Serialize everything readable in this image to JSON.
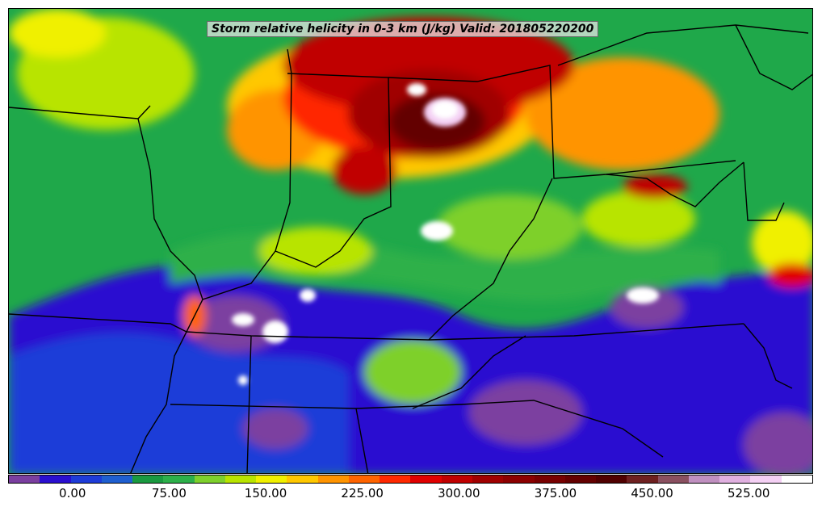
{
  "title": "Storm relative helicity in 0-3 km (J/kg) Valid: 201805220200",
  "colorbar": {
    "colors": [
      "#7b3fa0",
      "#2a0fd0",
      "#1e3cd8",
      "#1f5fd0",
      "#1a9a40",
      "#2db04a",
      "#7ed02c",
      "#b8e400",
      "#f0f000",
      "#ffc800",
      "#ff9400",
      "#ff6400",
      "#ff2800",
      "#e00000",
      "#c00000",
      "#a00000",
      "#8c0000",
      "#780000",
      "#640000",
      "#500000",
      "#6e2020",
      "#8a5060",
      "#c090c0",
      "#e0b0e0",
      "#f4d0f4",
      "#ffffff"
    ],
    "ticks": [
      {
        "label": "0.00",
        "value": 0
      },
      {
        "label": "75.00",
        "value": 75
      },
      {
        "label": "150.00",
        "value": 150
      },
      {
        "label": "225.00",
        "value": 225
      },
      {
        "label": "300.00",
        "value": 300
      },
      {
        "label": "375.00",
        "value": 375
      },
      {
        "label": "450.00",
        "value": 450
      },
      {
        "label": "525.00",
        "value": 525
      }
    ],
    "range": [
      -50,
      575
    ]
  },
  "colors": {
    "background_low": "#2a0fd0",
    "mid": "#1fa84a",
    "high": "#a00000",
    "extreme": "#ffffff",
    "negative": "#7b3fa0"
  }
}
